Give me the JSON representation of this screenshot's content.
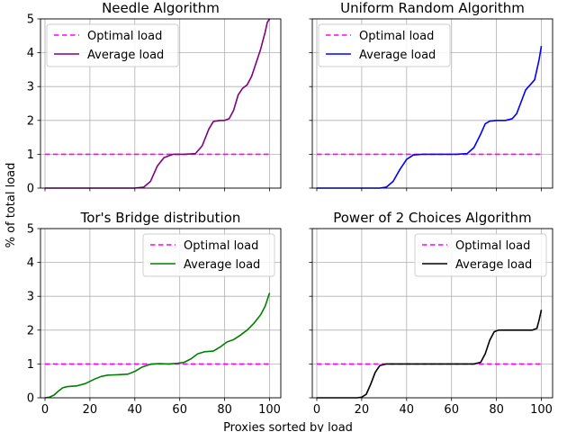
{
  "figure": {
    "ylabel": "% of total load",
    "xlabel": "Proxies sorted by load"
  },
  "colors": {
    "optimal": "#ff00ff",
    "grid": "#b0b0b0"
  },
  "chart_data": [
    {
      "type": "line",
      "title": "Needle Algorithm",
      "xlim": [
        -2,
        105
      ],
      "ylim": [
        0,
        5
      ],
      "xticks": [
        "0",
        "20",
        "40",
        "60",
        "80",
        "100"
      ],
      "yticks": [
        "0",
        "1",
        "2",
        "3",
        "4",
        "5"
      ],
      "grid": true,
      "legend": "upper-left",
      "series": [
        {
          "name": "Optimal load",
          "style": "dashed",
          "color": "#ff00ff",
          "x": [
            0,
            100
          ],
          "y": [
            1,
            1
          ]
        },
        {
          "name": "Average load",
          "style": "solid",
          "color": "#800080",
          "x": [
            0,
            40,
            44,
            47,
            50,
            53,
            57,
            62,
            67,
            70,
            73,
            75,
            78,
            80,
            82,
            84,
            86,
            88,
            90,
            92,
            94,
            96,
            98,
            99,
            100
          ],
          "y": [
            0,
            0,
            0.03,
            0.2,
            0.65,
            0.9,
            1.0,
            1.0,
            1.02,
            1.25,
            1.75,
            1.97,
            2.0,
            2.0,
            2.05,
            2.3,
            2.75,
            2.95,
            3.05,
            3.3,
            3.7,
            4.1,
            4.6,
            4.9,
            5.0
          ]
        }
      ]
    },
    {
      "type": "line",
      "title": "Uniform Random Algorithm",
      "xlim": [
        -2,
        105
      ],
      "ylim": [
        0,
        5
      ],
      "xticks": [
        "0",
        "20",
        "40",
        "60",
        "80",
        "100"
      ],
      "yticks": [
        "0",
        "1",
        "2",
        "3",
        "4",
        "5"
      ],
      "grid": true,
      "legend": "upper-left",
      "series": [
        {
          "name": "Optimal load",
          "style": "dashed",
          "color": "#ff00ff",
          "x": [
            0,
            100
          ],
          "y": [
            1,
            1
          ]
        },
        {
          "name": "Average load",
          "style": "solid",
          "color": "#0000ff",
          "x": [
            0,
            28,
            31,
            34,
            37,
            40,
            43,
            47,
            55,
            62,
            67,
            70,
            73,
            75,
            77,
            80,
            84,
            87,
            89,
            91,
            93,
            95,
            97,
            99,
            100
          ],
          "y": [
            0,
            0,
            0.03,
            0.2,
            0.55,
            0.85,
            0.98,
            1.0,
            1.0,
            1.0,
            1.02,
            1.2,
            1.6,
            1.9,
            1.98,
            2.0,
            2.0,
            2.05,
            2.2,
            2.55,
            2.9,
            3.05,
            3.2,
            3.8,
            4.2
          ]
        }
      ]
    },
    {
      "type": "line",
      "title": "Tor's Bridge distribution",
      "xlim": [
        -2,
        105
      ],
      "ylim": [
        0,
        5
      ],
      "xticks": [
        "0",
        "20",
        "40",
        "60",
        "80",
        "100"
      ],
      "yticks": [
        "0",
        "1",
        "2",
        "3",
        "4",
        "5"
      ],
      "grid": true,
      "legend": "upper-right",
      "series": [
        {
          "name": "Optimal load",
          "style": "dashed",
          "color": "#ff00ff",
          "x": [
            0,
            100
          ],
          "y": [
            1,
            1
          ]
        },
        {
          "name": "Average load",
          "style": "solid",
          "color": "#008000",
          "x": [
            0,
            2,
            4,
            6,
            8,
            10,
            14,
            18,
            22,
            25,
            28,
            32,
            37,
            40,
            43,
            46,
            48,
            51,
            55,
            59,
            62,
            65,
            68,
            71,
            75,
            78,
            81,
            84,
            87,
            90,
            93,
            96,
            98,
            100
          ],
          "y": [
            0,
            0.02,
            0.08,
            0.2,
            0.3,
            0.33,
            0.35,
            0.42,
            0.55,
            0.63,
            0.67,
            0.68,
            0.7,
            0.78,
            0.9,
            0.97,
            1.0,
            1.01,
            1.0,
            1.02,
            1.05,
            1.15,
            1.3,
            1.36,
            1.38,
            1.5,
            1.65,
            1.72,
            1.85,
            2.0,
            2.2,
            2.45,
            2.7,
            3.1
          ]
        }
      ]
    },
    {
      "type": "line",
      "title": "Power of 2 Choices Algorithm",
      "xlim": [
        -2,
        105
      ],
      "ylim": [
        0,
        5
      ],
      "xticks": [
        "0",
        "20",
        "40",
        "60",
        "80",
        "100"
      ],
      "yticks": [
        "0",
        "1",
        "2",
        "3",
        "4",
        "5"
      ],
      "grid": true,
      "legend": "upper-right",
      "series": [
        {
          "name": "Optimal load",
          "style": "dashed",
          "color": "#ff00ff",
          "x": [
            0,
            100
          ],
          "y": [
            1,
            1
          ]
        },
        {
          "name": "Average load",
          "style": "solid",
          "color": "#000000",
          "x": [
            0,
            18,
            20,
            22,
            24,
            26,
            28,
            31,
            40,
            60,
            70,
            73,
            75,
            77,
            79,
            81,
            84,
            90,
            96,
            98,
            99,
            100
          ],
          "y": [
            0,
            0,
            0.02,
            0.1,
            0.4,
            0.75,
            0.95,
            1.0,
            1.0,
            1.0,
            1.0,
            1.05,
            1.3,
            1.7,
            1.95,
            2.0,
            2.0,
            2.0,
            2.0,
            2.05,
            2.3,
            2.6
          ]
        }
      ]
    }
  ]
}
